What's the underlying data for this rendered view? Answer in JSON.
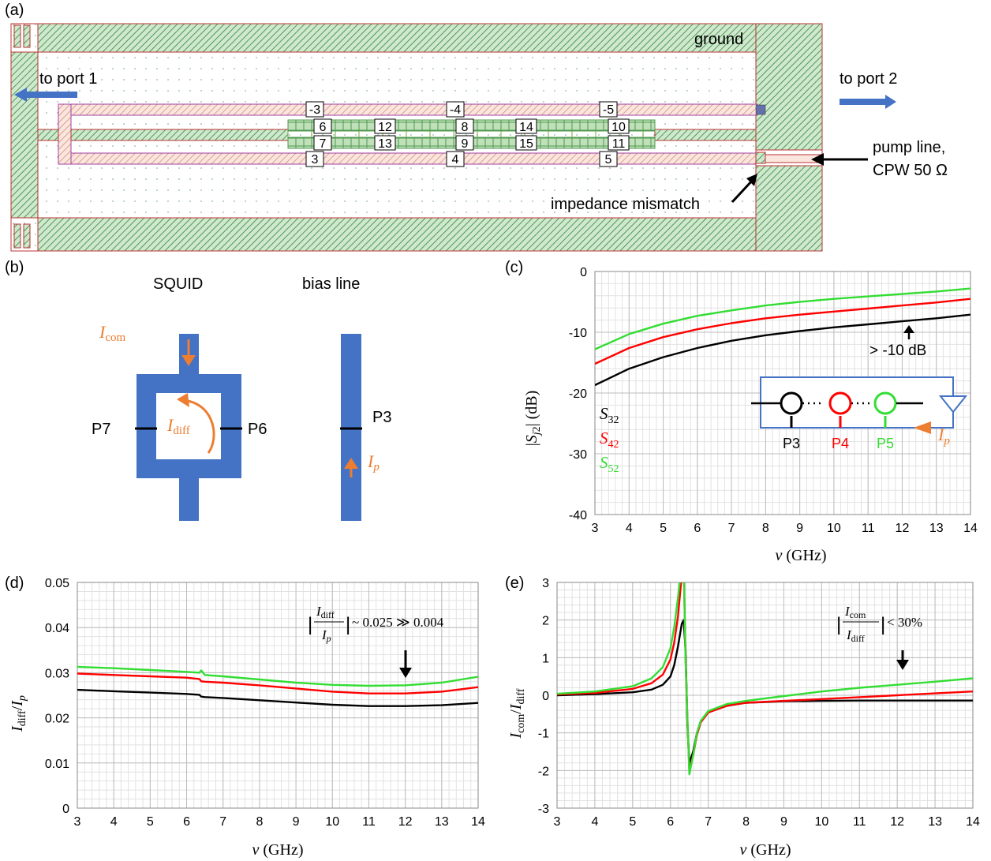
{
  "panels": {
    "a": "(a)",
    "b": "(b)",
    "c": "(c)",
    "d": "(d)",
    "e": "(e)"
  },
  "layout_a": {
    "ground": "ground",
    "to_port1": "to port 1",
    "to_port2": "to port 2",
    "pump_line_1": "pump line,",
    "pump_line_2": "CPW 50 Ω",
    "impedance": "impedance mismatch",
    "port_labels_top": [
      "-3",
      "-4",
      "-5"
    ],
    "port_labels_bottom": [
      "3",
      "4",
      "5"
    ],
    "port_labels_mid_upper": [
      "6",
      "12",
      "8",
      "14",
      "10"
    ],
    "port_labels_mid_lower": [
      "7",
      "13",
      "9",
      "15",
      "11"
    ]
  },
  "panel_b": {
    "squid_title": "SQUID",
    "bias_title": "bias line",
    "i_com": "I",
    "i_com_sub": "com",
    "i_diff": "I",
    "i_diff_sub": "diff",
    "i_p": "I",
    "i_p_sub": "p",
    "p7": "P7",
    "p6": "P6",
    "p3": "P3"
  },
  "colors": {
    "blue": "#4472c4",
    "orange": "#ed7d31",
    "black": "#000000",
    "red": "#ff0000",
    "green": "#33dd33",
    "hatch_green": "#59a85a",
    "hatch_red": "#c05050"
  },
  "chart_data": [
    {
      "id": "c",
      "type": "line",
      "xlabel": "ν (GHz)",
      "ylabel": "|S_j2| (dB)",
      "xlim": [
        3,
        14
      ],
      "ylim": [
        -40,
        0
      ],
      "xticks": [
        3,
        4,
        5,
        6,
        7,
        8,
        9,
        10,
        11,
        12,
        13,
        14
      ],
      "yticks": [
        0,
        -10,
        -20,
        -30,
        -40
      ],
      "x": [
        3,
        4,
        5,
        6,
        7,
        8,
        9,
        10,
        11,
        12,
        13,
        14
      ],
      "series": [
        {
          "name": "S32",
          "color": "#000000",
          "values": [
            -18.7,
            -16.0,
            -14.1,
            -12.6,
            -11.4,
            -10.5,
            -9.8,
            -9.2,
            -8.7,
            -8.2,
            -7.7,
            -7.1
          ]
        },
        {
          "name": "S42",
          "color": "#ff0000",
          "values": [
            -15.2,
            -12.6,
            -10.8,
            -9.5,
            -8.5,
            -7.7,
            -7.1,
            -6.6,
            -6.1,
            -5.6,
            -5.1,
            -4.5
          ]
        },
        {
          "name": "S52",
          "color": "#33dd33",
          "values": [
            -12.8,
            -10.3,
            -8.6,
            -7.3,
            -6.4,
            -5.6,
            -5.0,
            -4.5,
            -4.1,
            -3.7,
            -3.3,
            -2.8
          ]
        }
      ],
      "annotation": "> -10 dB",
      "inset_labels": [
        "P3",
        "P4",
        "P5"
      ],
      "inset_current": "I",
      "inset_current_sub": "p",
      "legend": "left-bottom",
      "grid": true
    },
    {
      "id": "d",
      "type": "line",
      "xlabel": "ν (GHz)",
      "ylabel": "I_diff / I_p",
      "xlim": [
        3,
        14
      ],
      "ylim": [
        0,
        0.05
      ],
      "xticks": [
        3,
        4,
        5,
        6,
        7,
        8,
        9,
        10,
        11,
        12,
        13,
        14
      ],
      "yticks": [
        0,
        0.01,
        0.02,
        0.03,
        0.04,
        0.05
      ],
      "ytick_labels": [
        "0",
        "0.01",
        "0.02",
        "0.03",
        "0.04",
        "0.05"
      ],
      "x": [
        3,
        4,
        5,
        6,
        6.35,
        6.4,
        6.5,
        7,
        8,
        9,
        10,
        11,
        12,
        13,
        14
      ],
      "series": [
        {
          "name": "",
          "color": "#000000",
          "values": [
            0.0262,
            0.0259,
            0.0256,
            0.0253,
            0.0251,
            0.0247,
            0.0246,
            0.0244,
            0.0239,
            0.0234,
            0.0229,
            0.0226,
            0.0226,
            0.0228,
            0.0233
          ]
        },
        {
          "name": "",
          "color": "#ff0000",
          "values": [
            0.0298,
            0.0295,
            0.0292,
            0.0289,
            0.0286,
            0.0281,
            0.028,
            0.0278,
            0.0272,
            0.0265,
            0.0258,
            0.0254,
            0.0254,
            0.0258,
            0.0268
          ]
        },
        {
          "name": "",
          "color": "#33dd33",
          "values": [
            0.0313,
            0.031,
            0.0306,
            0.0302,
            0.03,
            0.0305,
            0.0295,
            0.0292,
            0.0285,
            0.0278,
            0.0273,
            0.0271,
            0.0272,
            0.0278,
            0.0291
          ]
        }
      ],
      "annotation": "~ 0.025 ≫ 0.004",
      "annotation_frac_num": "I",
      "annotation_frac_num_sub": "diff",
      "annotation_frac_den": "I",
      "annotation_frac_den_sub": "p",
      "grid": true
    },
    {
      "id": "e",
      "type": "line",
      "xlabel": "ν (GHz)",
      "ylabel": "I_com / I_diff",
      "xlim": [
        3,
        14
      ],
      "ylim": [
        -3,
        3
      ],
      "xticks": [
        3,
        4,
        5,
        6,
        7,
        8,
        9,
        10,
        11,
        12,
        13,
        14
      ],
      "yticks": [
        3,
        2,
        1,
        0,
        -1,
        -2,
        -3
      ],
      "x": [
        3,
        4,
        5,
        5.5,
        5.8,
        6.0,
        6.1,
        6.2,
        6.3,
        6.35,
        6.4,
        6.45,
        6.5,
        6.6,
        6.7,
        6.8,
        7,
        7.5,
        8,
        9,
        10,
        11,
        12,
        13,
        14
      ],
      "series": [
        {
          "name": "",
          "color": "#000000",
          "values": [
            0.0,
            0.03,
            0.08,
            0.15,
            0.28,
            0.5,
            0.8,
            1.3,
            1.9,
            2.0,
            1.2,
            -0.8,
            -1.8,
            -1.5,
            -1.0,
            -0.7,
            -0.45,
            -0.28,
            -0.2,
            -0.16,
            -0.15,
            -0.14,
            -0.14,
            -0.14,
            -0.14
          ]
        },
        {
          "name": "",
          "color": "#ff0000",
          "values": [
            0.02,
            0.06,
            0.17,
            0.32,
            0.55,
            0.95,
            1.4,
            2.1,
            3.2,
            3.5,
            1.0,
            -0.7,
            -2.0,
            -1.6,
            -1.05,
            -0.72,
            -0.46,
            -0.28,
            -0.2,
            -0.15,
            -0.1,
            -0.05,
            0.0,
            0.05,
            0.1
          ]
        },
        {
          "name": "",
          "color": "#33dd33",
          "values": [
            0.04,
            0.1,
            0.24,
            0.45,
            0.75,
            1.25,
            1.8,
            2.6,
            3.5,
            3.5,
            0.9,
            -0.6,
            -2.1,
            -1.6,
            -1.0,
            -0.68,
            -0.42,
            -0.23,
            -0.15,
            -0.02,
            0.1,
            0.2,
            0.28,
            0.36,
            0.45
          ]
        }
      ],
      "annotation": "< 30%",
      "annotation_frac_num": "I",
      "annotation_frac_num_sub": "com",
      "annotation_frac_den": "I",
      "annotation_frac_den_sub": "diff",
      "grid": true
    }
  ]
}
